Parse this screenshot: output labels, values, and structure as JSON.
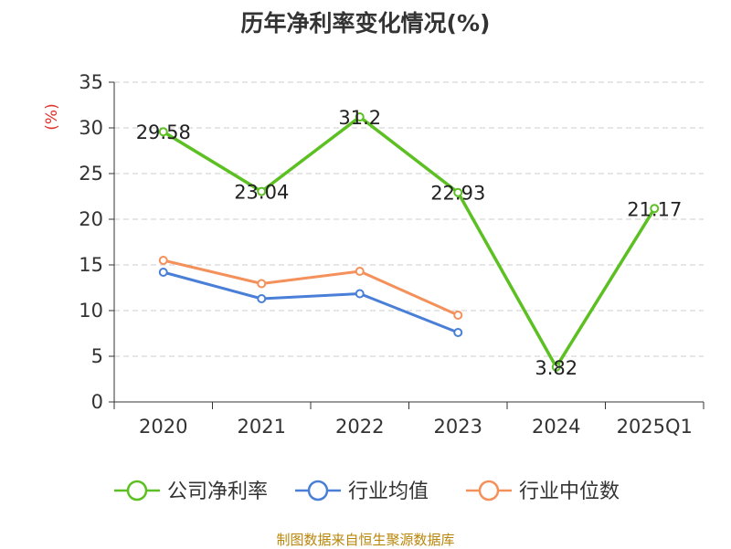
{
  "title": "历年净利率变化情况(%)",
  "footer": "制图数据来自恒生聚源数据库",
  "chart_data": {
    "type": "line",
    "title": "历年净利率变化情况(%)",
    "ylabel": "(%)",
    "xlabel": "",
    "categories": [
      "2020",
      "2021",
      "2022",
      "2023",
      "2024",
      "2025Q1"
    ],
    "ylim": [
      0,
      35
    ],
    "yticks": [
      0,
      5,
      10,
      15,
      20,
      25,
      30,
      35
    ],
    "grid": true,
    "legend_position": "bottom",
    "series": [
      {
        "name": "公司净利率",
        "color": "#5cc022",
        "values": [
          29.58,
          23.04,
          31.2,
          22.93,
          3.82,
          21.17
        ],
        "labels": [
          "29.58",
          "23.04",
          "31.2",
          "22.93",
          "3.82",
          "21.17"
        ]
      },
      {
        "name": "行业均值",
        "color": "#4a7fd8",
        "values": [
          14.2,
          11.3,
          11.85,
          7.6,
          null,
          null
        ]
      },
      {
        "name": "行业中位数",
        "color": "#f4905a",
        "values": [
          15.5,
          12.95,
          14.3,
          9.5,
          null,
          null
        ]
      }
    ]
  }
}
